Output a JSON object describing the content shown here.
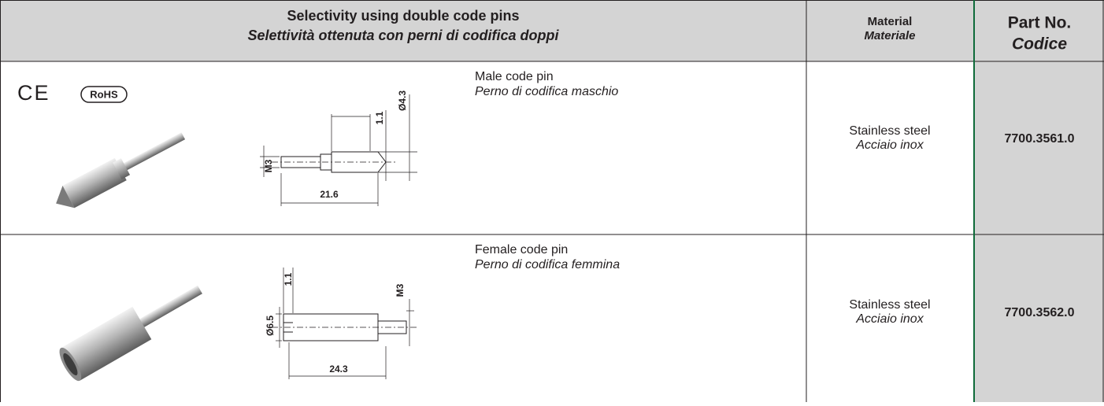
{
  "header": {
    "title": "Selectivity using double code pins",
    "title_it": "Selettività ottenuta con perni di codifica doppi",
    "material": "Material",
    "material_it": "Materiale",
    "part_no": "Part No.",
    "part_no_it": "Codice"
  },
  "marks": {
    "ce": "CE",
    "rohs": "RoHS"
  },
  "rows": [
    {
      "name": "Male code pin",
      "name_it": "Perno di codifica maschio",
      "material": "Stainless steel",
      "material_it": "Acciaio inox",
      "part_no": "7700.3561.0",
      "dimensions": [
        "M3",
        "21.6",
        "1.1",
        "Ø4.3"
      ]
    },
    {
      "name": "Female code pin",
      "name_it": "Perno di codifica femmina",
      "material": "Stainless steel",
      "material_it": "Acciaio inox",
      "part_no": "7700.3562.0",
      "dimensions": [
        "1.1",
        "M3",
        "Ø6.5",
        "24.3"
      ]
    }
  ]
}
